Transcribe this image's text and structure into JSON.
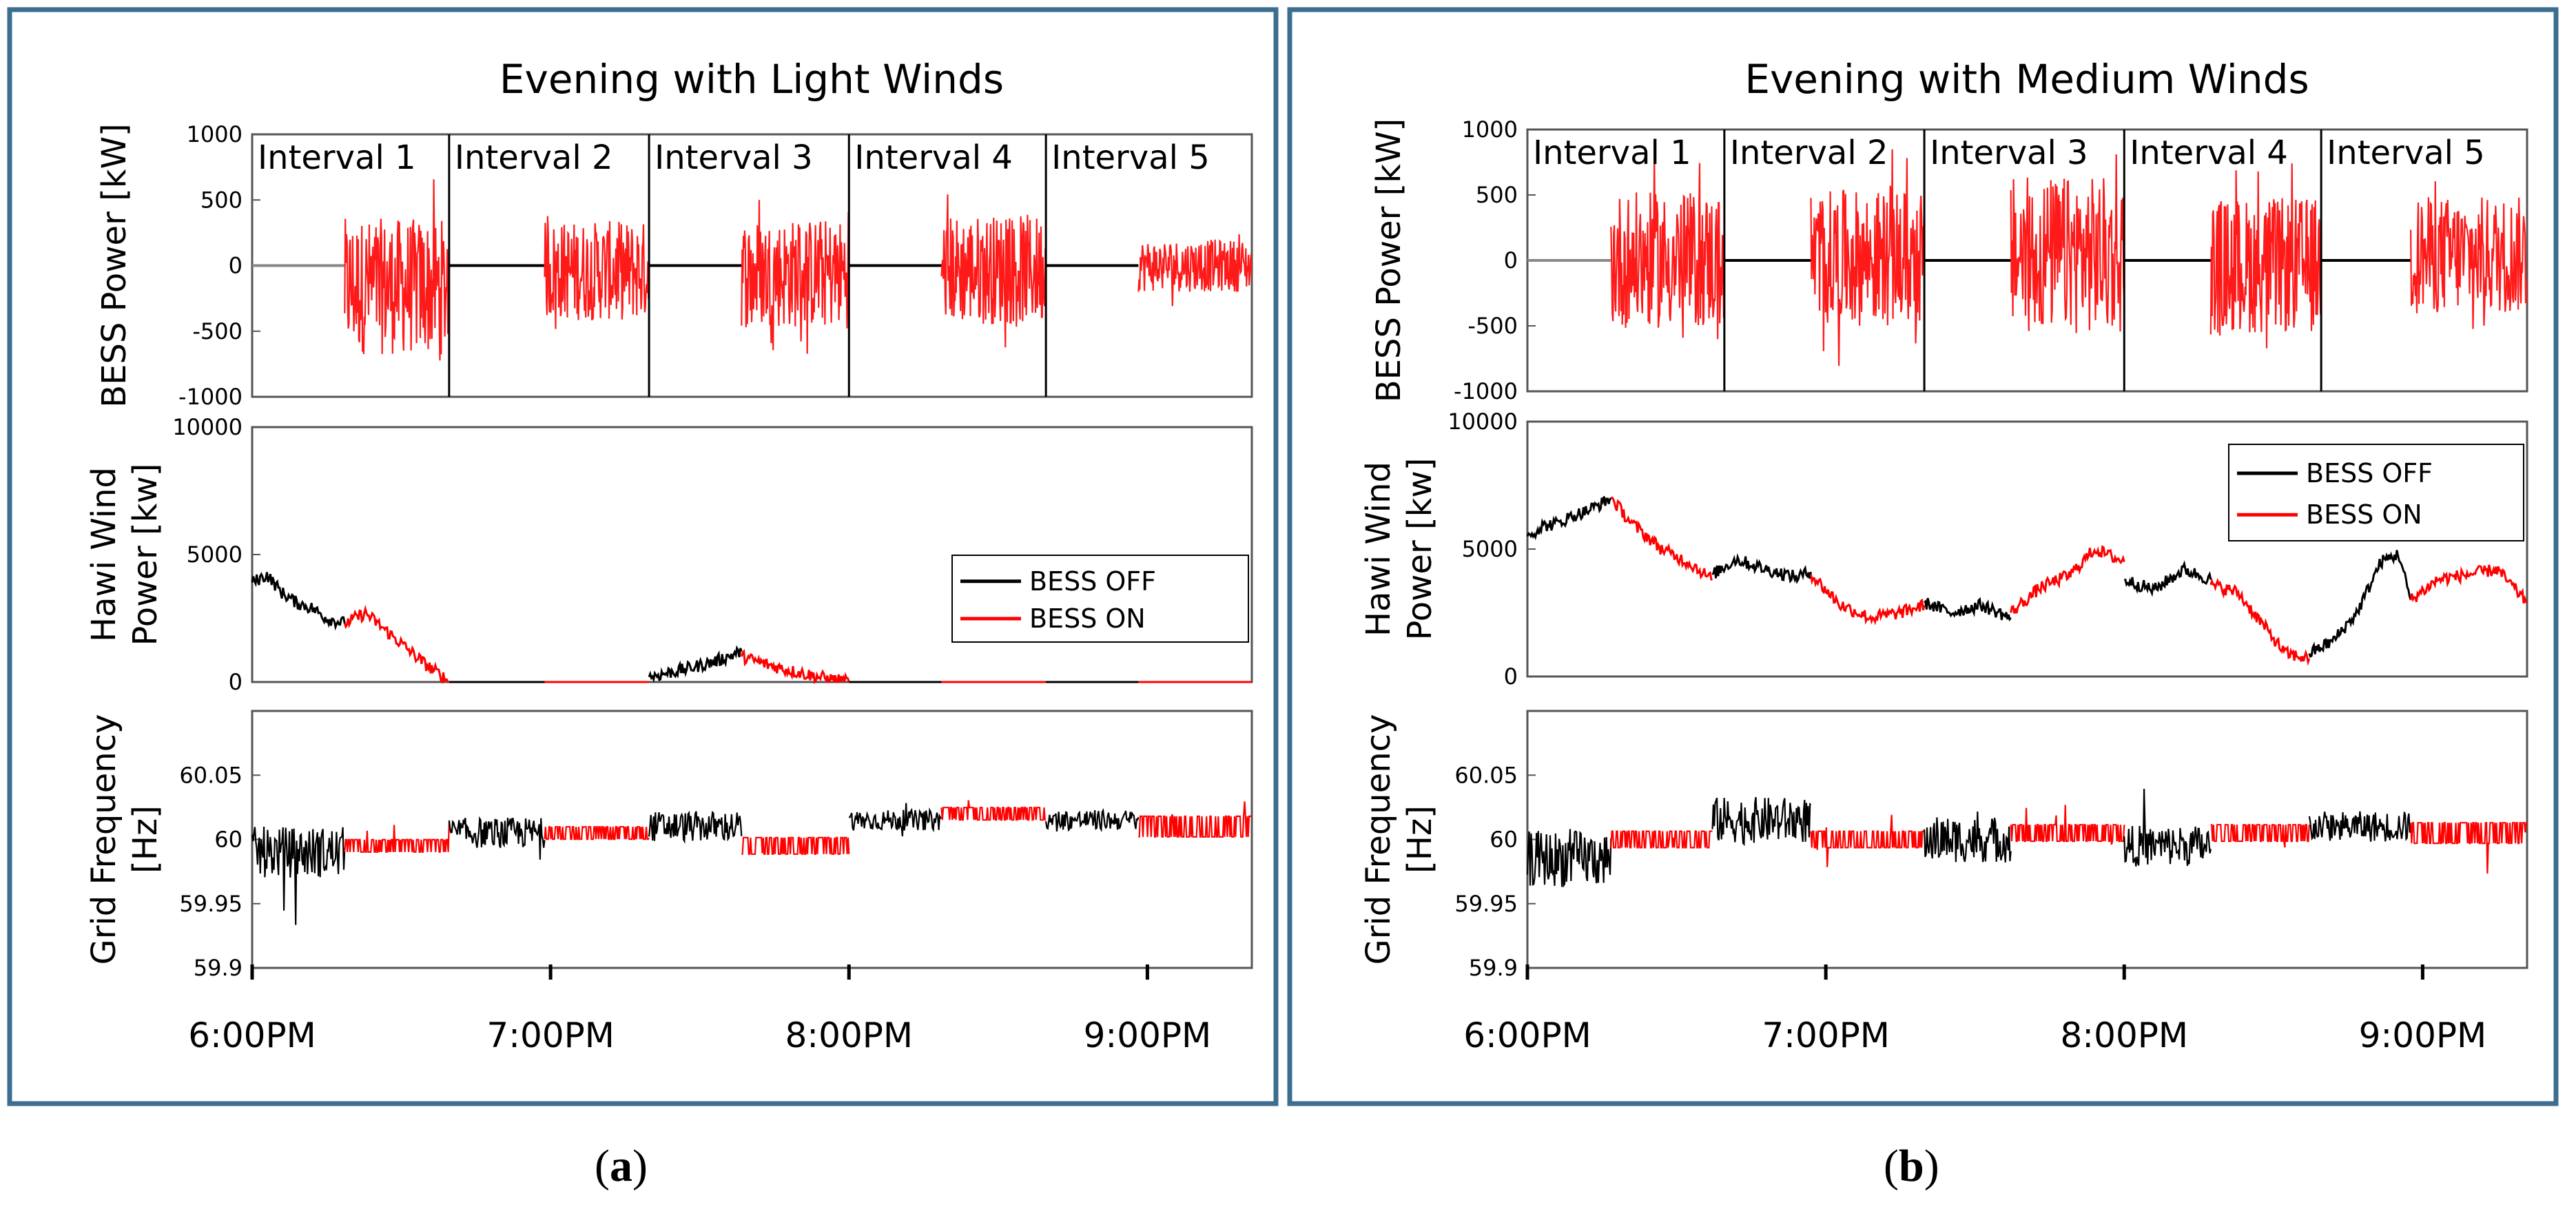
{
  "panels": [
    {
      "id": "a",
      "caption_open": "(",
      "caption_letter": "a",
      "caption_close": ")",
      "title": "Evening with Light Winds",
      "intervals": [
        "Interval 1",
        "Interval 2",
        "Interval 3",
        "Interval 4",
        "Interval 5"
      ],
      "time_ticks": [
        "6:00PM",
        "7:00PM",
        "8:00PM",
        "9:00PM"
      ],
      "subplots": {
        "bess": {
          "ylabel": "BESS Power [kW]",
          "ylim": [
            -1000,
            1000
          ],
          "yticks": [
            "1000",
            "500",
            "0",
            "-500",
            "-1000"
          ]
        },
        "wind": {
          "ylabel_line1": "Hawi Wind",
          "ylabel_line2": "Power [kw]",
          "ylim": [
            0,
            10000
          ],
          "yticks": [
            "10000",
            "5000",
            "0"
          ],
          "legend": [
            "BESS OFF",
            "BESS ON"
          ],
          "legend_position": "right"
        },
        "freq": {
          "ylabel_line1": "Grid Frequency",
          "ylabel_line2": "[Hz]",
          "ylim": [
            59.9,
            60.1
          ],
          "yticks": [
            "60.05",
            "60",
            "59.95",
            "59.9"
          ]
        }
      }
    },
    {
      "id": "b",
      "caption_open": "(",
      "caption_letter": "b",
      "caption_close": ")",
      "title": "Evening with Medium Winds",
      "intervals": [
        "Interval 1",
        "Interval 2",
        "Interval 3",
        "Interval 4",
        "Interval 5"
      ],
      "time_ticks": [
        "6:00PM",
        "7:00PM",
        "8:00PM",
        "9:00PM"
      ],
      "subplots": {
        "bess": {
          "ylabel": "BESS Power [kW]",
          "ylim": [
            -1000,
            1000
          ],
          "yticks": [
            "1000",
            "500",
            "0",
            "-500",
            "-1000"
          ]
        },
        "wind": {
          "ylabel_line1": "Hawi Wind",
          "ylabel_line2": "Power [kw]",
          "ylim": [
            0,
            10000
          ],
          "yticks": [
            "10000",
            "5000",
            "0"
          ],
          "legend": [
            "BESS OFF",
            "BESS ON"
          ],
          "legend_position": "top-right"
        },
        "freq": {
          "ylabel_line1": "Grid Frequency",
          "ylabel_line2": "[Hz]",
          "ylim": [
            59.9,
            60.1
          ],
          "yticks": [
            "60.05",
            "60",
            "59.95",
            "59.9"
          ]
        }
      }
    }
  ],
  "chart_data": [
    {
      "type": "line",
      "panel": "a",
      "title": "Evening with Light Winds",
      "x_unit": "hours after 6:00PM",
      "x_range": [
        0,
        3.35
      ],
      "x_ticks": {
        "labels": [
          "6:00PM",
          "7:00PM",
          "8:00PM",
          "9:00PM"
        ],
        "values": [
          0,
          1,
          2,
          3
        ]
      },
      "intervals": {
        "labels": [
          "Interval 1",
          "Interval 2",
          "Interval 3",
          "Interval 4",
          "Interval 5"
        ],
        "boundaries": [
          0,
          0.66,
          1.33,
          2.0,
          2.66,
          3.35
        ],
        "bess_on_start": [
          0.31,
          0.98,
          1.64,
          2.31,
          2.97
        ]
      },
      "colors": {
        "BESS OFF": "#000000",
        "BESS ON": "#ff0000"
      },
      "bess_power_kw": {
        "ylim": [
          -1000,
          1000
        ],
        "off_level": 0,
        "on_amplitude": [
          520,
          380,
          420,
          420,
          200
        ],
        "on_bias": [
          -160,
          -40,
          -60,
          -30,
          0
        ]
      },
      "hawi_wind_power_kw": {
        "ylim": [
          0,
          10000
        ],
        "series": [
          {
            "name": "BESS OFF",
            "x": [
              0,
              0.05,
              0.1,
              0.15,
              0.2,
              0.25,
              0.31
            ],
            "y": [
              3900,
              4200,
              3500,
              3100,
              2900,
              2500,
              2300
            ]
          },
          {
            "name": "BESS ON",
            "x": [
              0.31,
              0.38,
              0.45,
              0.52,
              0.58,
              0.64,
              0.66
            ],
            "y": [
              2300,
              2700,
              2000,
              1300,
              700,
              200,
              0
            ]
          },
          {
            "name": "BESS OFF",
            "x": [
              0.66,
              0.98
            ],
            "y": [
              0,
              0
            ]
          },
          {
            "name": "BESS ON",
            "x": [
              0.98,
              1.33
            ],
            "y": [
              0,
              0
            ]
          },
          {
            "name": "BESS OFF",
            "x": [
              1.33,
              1.45,
              1.55,
              1.64
            ],
            "y": [
              200,
              500,
              800,
              1200
            ]
          },
          {
            "name": "BESS ON",
            "x": [
              1.64,
              1.72,
              1.82,
              1.92,
              2.0
            ],
            "y": [
              1000,
              700,
              400,
              150,
              0
            ]
          },
          {
            "name": "BESS OFF",
            "x": [
              2.0,
              2.31
            ],
            "y": [
              0,
              0
            ]
          },
          {
            "name": "BESS ON",
            "x": [
              2.31,
              2.66
            ],
            "y": [
              0,
              0
            ]
          },
          {
            "name": "BESS OFF",
            "x": [
              2.66,
              2.97
            ],
            "y": [
              0,
              0
            ]
          },
          {
            "name": "BESS ON",
            "x": [
              2.97,
              3.35
            ],
            "y": [
              0,
              0
            ]
          }
        ]
      },
      "grid_frequency_hz": {
        "ylim": [
          59.9,
          60.1
        ],
        "segments": [
          {
            "name": "BESS OFF",
            "x": [
              0,
              0.31
            ],
            "mean": 59.99,
            "spread": 0.02
          },
          {
            "name": "BESS ON",
            "x": [
              0.31,
              0.66
            ],
            "mean": 59.995,
            "spread": 0.006
          },
          {
            "name": "BESS OFF",
            "x": [
              0.66,
              0.98
            ],
            "mean": 60.005,
            "spread": 0.012
          },
          {
            "name": "BESS ON",
            "x": [
              0.98,
              1.33
            ],
            "mean": 60.005,
            "spread": 0.006
          },
          {
            "name": "BESS OFF",
            "x": [
              1.33,
              1.64
            ],
            "mean": 60.01,
            "spread": 0.012
          },
          {
            "name": "BESS ON",
            "x": [
              1.64,
              2.0
            ],
            "mean": 59.995,
            "spread": 0.008
          },
          {
            "name": "BESS OFF",
            "x": [
              2.0,
              2.31
            ],
            "mean": 60.015,
            "spread": 0.008
          },
          {
            "name": "BESS ON",
            "x": [
              2.31,
              2.66
            ],
            "mean": 60.02,
            "spread": 0.006
          },
          {
            "name": "BESS OFF",
            "x": [
              2.66,
              2.97
            ],
            "mean": 60.015,
            "spread": 0.008
          },
          {
            "name": "BESS ON",
            "x": [
              2.97,
              3.35
            ],
            "mean": 60.01,
            "spread": 0.01
          }
        ]
      }
    },
    {
      "type": "line",
      "panel": "b",
      "title": "Evening with Medium Winds",
      "x_unit": "hours after 6:00PM",
      "x_range": [
        0,
        3.35
      ],
      "x_ticks": {
        "labels": [
          "6:00PM",
          "7:00PM",
          "8:00PM",
          "9:00PM"
        ],
        "values": [
          0,
          1,
          2,
          3
        ]
      },
      "intervals": {
        "labels": [
          "Interval 1",
          "Interval 2",
          "Interval 3",
          "Interval 4",
          "Interval 5"
        ],
        "boundaries": [
          0,
          0.66,
          1.33,
          2.0,
          2.66,
          3.35
        ],
        "bess_on_start": [
          0.28,
          0.95,
          1.62,
          2.29,
          2.96
        ]
      },
      "colors": {
        "BESS OFF": "#000000",
        "BESS ON": "#ff0000"
      },
      "bess_power_kw": {
        "ylim": [
          -1000,
          1000
        ],
        "off_level": 0,
        "on_amplitude": [
          520,
          520,
          600,
          520,
          450
        ],
        "on_bias": [
          0,
          20,
          40,
          -40,
          40
        ]
      },
      "hawi_wind_power_kw": {
        "ylim": [
          0,
          10000
        ],
        "series": [
          {
            "name": "BESS OFF",
            "x": [
              0,
              0.05,
              0.1,
              0.15,
              0.2,
              0.25,
              0.28
            ],
            "y": [
              5500,
              5900,
              6000,
              6300,
              6500,
              6800,
              7000
            ]
          },
          {
            "name": "BESS ON",
            "x": [
              0.28,
              0.35,
              0.45,
              0.55,
              0.62
            ],
            "y": [
              7000,
              6000,
              5000,
              4400,
              3800
            ]
          },
          {
            "name": "BESS OFF",
            "x": [
              0.62,
              0.7,
              0.8,
              0.9,
              0.95
            ],
            "y": [
              4000,
              4600,
              4200,
              3900,
              4100
            ]
          },
          {
            "name": "BESS ON",
            "x": [
              0.95,
              1.05,
              1.15,
              1.25,
              1.33
            ],
            "y": [
              4000,
              2800,
              2300,
              2500,
              2800
            ]
          },
          {
            "name": "BESS OFF",
            "x": [
              1.33,
              1.42,
              1.52,
              1.62
            ],
            "y": [
              2900,
              2500,
              2800,
              2300
            ]
          },
          {
            "name": "BESS ON",
            "x": [
              1.62,
              1.72,
              1.82,
              1.9,
              2.0
            ],
            "y": [
              2500,
              3500,
              4000,
              5000,
              4500
            ]
          },
          {
            "name": "BESS OFF",
            "x": [
              2.0,
              2.1,
              2.2,
              2.29
            ],
            "y": [
              3800,
              3400,
              4200,
              3800
            ]
          },
          {
            "name": "BESS ON",
            "x": [
              2.29,
              2.38,
              2.46,
              2.54,
              2.62
            ],
            "y": [
              3600,
              3300,
              2100,
              900,
              700
            ]
          },
          {
            "name": "BESS OFF",
            "x": [
              2.62,
              2.7,
              2.78,
              2.86,
              2.92,
              2.96
            ],
            "y": [
              900,
              1400,
              2500,
              4500,
              4800,
              3000
            ]
          },
          {
            "name": "BESS ON",
            "x": [
              2.96,
              3.05,
              3.15,
              3.25,
              3.35
            ],
            "y": [
              3000,
              3800,
              4000,
              4200,
              2900
            ]
          }
        ]
      },
      "grid_frequency_hz": {
        "ylim": [
          59.9,
          60.1
        ],
        "segments": [
          {
            "name": "BESS OFF",
            "x": [
              0,
              0.28
            ],
            "mean": 59.985,
            "spread": 0.022
          },
          {
            "name": "BESS ON",
            "x": [
              0.28,
              0.62
            ],
            "mean": 60.0,
            "spread": 0.008
          },
          {
            "name": "BESS OFF",
            "x": [
              0.62,
              0.95
            ],
            "mean": 60.015,
            "spread": 0.018
          },
          {
            "name": "BESS ON",
            "x": [
              0.95,
              1.33
            ],
            "mean": 60.0,
            "spread": 0.008
          },
          {
            "name": "BESS OFF",
            "x": [
              1.33,
              1.62
            ],
            "mean": 60.0,
            "spread": 0.018
          },
          {
            "name": "BESS ON",
            "x": [
              1.62,
              2.0
            ],
            "mean": 60.005,
            "spread": 0.008
          },
          {
            "name": "BESS OFF",
            "x": [
              2.0,
              2.29
            ],
            "mean": 59.995,
            "spread": 0.016
          },
          {
            "name": "BESS ON",
            "x": [
              2.29,
              2.62
            ],
            "mean": 60.005,
            "spread": 0.008
          },
          {
            "name": "BESS OFF",
            "x": [
              2.62,
              2.96
            ],
            "mean": 60.01,
            "spread": 0.012
          },
          {
            "name": "BESS ON",
            "x": [
              2.96,
              3.35
            ],
            "mean": 60.005,
            "spread": 0.01
          }
        ]
      }
    }
  ]
}
